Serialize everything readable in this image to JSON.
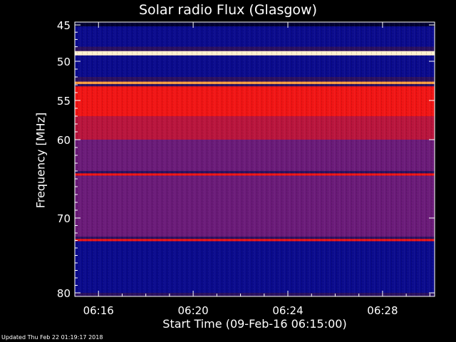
{
  "chart_data": {
    "type": "heatmap",
    "title": "Solar radio Flux (Glasgow)",
    "xlabel": "Start Time (09-Feb-16 06:15:00)",
    "ylabel": "Frequency [MHz]",
    "x_ticks": [
      "06:16",
      "06:20",
      "06:24",
      "06:28"
    ],
    "x_tick_minutes": [
      1,
      5,
      9,
      13
    ],
    "xlim_minutes": [
      0,
      15.2
    ],
    "y_ticks": [
      45,
      50,
      55,
      60,
      70,
      80
    ],
    "ylim": [
      44.5,
      80.2
    ],
    "y_scale": "nonlinear",
    "colormap": "blue-red-yellow-white",
    "frequency_bands_mhz": [
      {
        "from": 45.2,
        "to": 48.0,
        "level": "low"
      },
      {
        "from": 48.6,
        "to": 49.2,
        "level": "saturated"
      },
      {
        "from": 49.2,
        "to": 50.0,
        "level": "low"
      },
      {
        "from": 50.0,
        "to": 52.0,
        "level": "low"
      },
      {
        "from": 52.6,
        "to": 52.9,
        "level": "very high"
      },
      {
        "from": 53.2,
        "to": 57.0,
        "level": "high"
      },
      {
        "from": 57.0,
        "to": 60.0,
        "level": "medium"
      },
      {
        "from": 60.0,
        "to": 64.0,
        "level": "medium-low"
      },
      {
        "from": 64.3,
        "to": 64.6,
        "level": "high"
      },
      {
        "from": 64.6,
        "to": 72.5,
        "level": "medium-low"
      },
      {
        "from": 72.8,
        "to": 73.1,
        "level": "high"
      },
      {
        "from": 73.1,
        "to": 80.0,
        "level": "low"
      }
    ]
  },
  "footer": "Updated Thu Feb 22 01:19:17 2018"
}
